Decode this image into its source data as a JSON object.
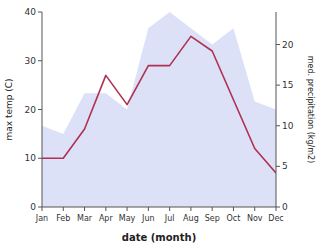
{
  "chart_data": {
    "type": "line",
    "categories": [
      "Jan",
      "Feb",
      "Mar",
      "Apr",
      "May",
      "Jun",
      "Jul",
      "Aug",
      "Sep",
      "Oct",
      "Nov",
      "Dec"
    ],
    "series": [
      {
        "type": "area",
        "axis": "y2",
        "color": "#c0c8f0",
        "values": [
          10,
          9,
          14,
          14,
          12,
          22,
          24,
          22,
          20,
          22,
          13,
          12
        ]
      },
      {
        "type": "line",
        "color": "#b03050",
        "values": [
          10,
          10,
          16,
          27,
          21,
          29,
          29,
          35,
          32,
          22,
          12,
          7
        ]
      }
    ],
    "x_label": "date (month)",
    "y_label": "max temp (C)",
    "y2_label": "med. precipitation (kg/m2)",
    "ylim": [
      0,
      40
    ],
    "yticks": [
      0,
      10,
      20,
      30,
      40
    ],
    "y2lim": [
      0,
      24
    ],
    "y2ticks": [
      0,
      5,
      10,
      15,
      20
    ],
    "grid": false
  }
}
